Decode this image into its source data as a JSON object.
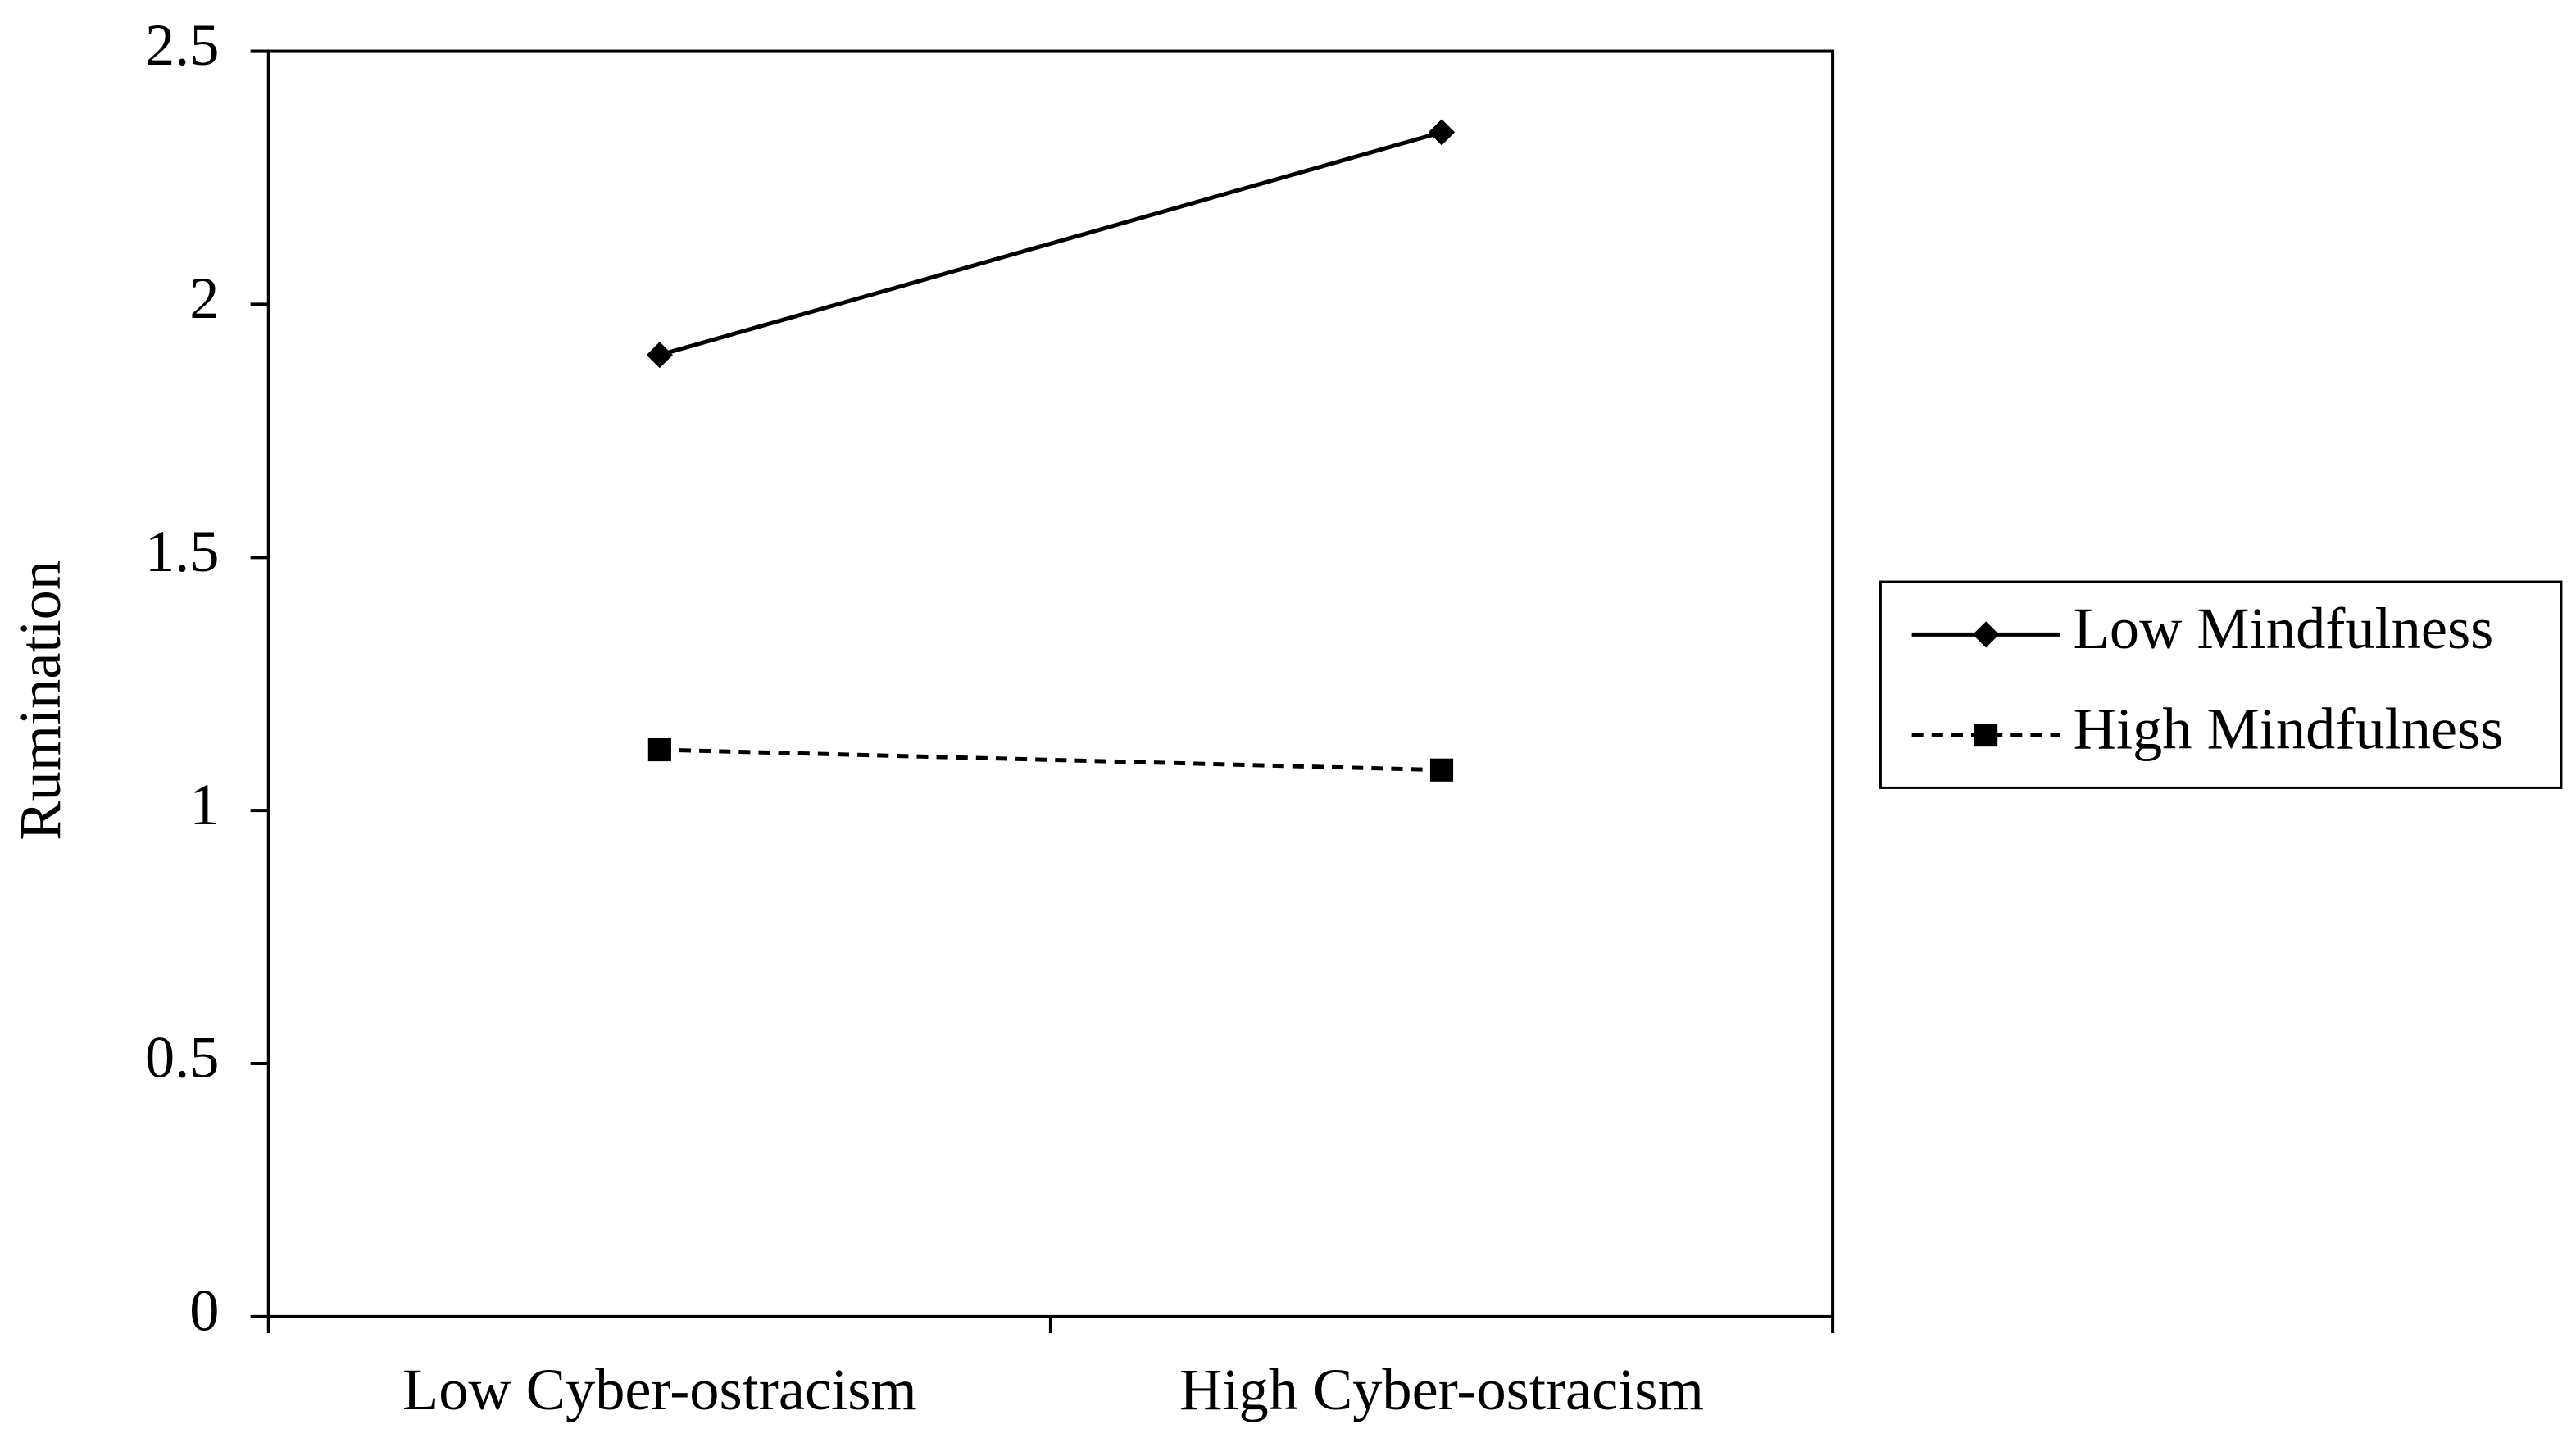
{
  "chart_data": {
    "type": "line",
    "categories": [
      "Low Cyber-ostracism",
      "High Cyber-ostracism"
    ],
    "y_label": "Rumination",
    "series": [
      {
        "name": "Low Mindfulness",
        "color": "#000000",
        "linestyle": "solid",
        "marker": "diamond",
        "values": [
          1.9,
          2.34
        ]
      },
      {
        "name": "High Mindfulness",
        "color": "#000000",
        "linestyle": "dashed",
        "marker": "square",
        "values": [
          1.12,
          1.08
        ]
      }
    ],
    "ylim": [
      0,
      2.5
    ],
    "yticks": [
      0,
      0.5,
      1,
      1.5,
      2,
      2.5
    ],
    "grid": false,
    "legend": "right"
  }
}
